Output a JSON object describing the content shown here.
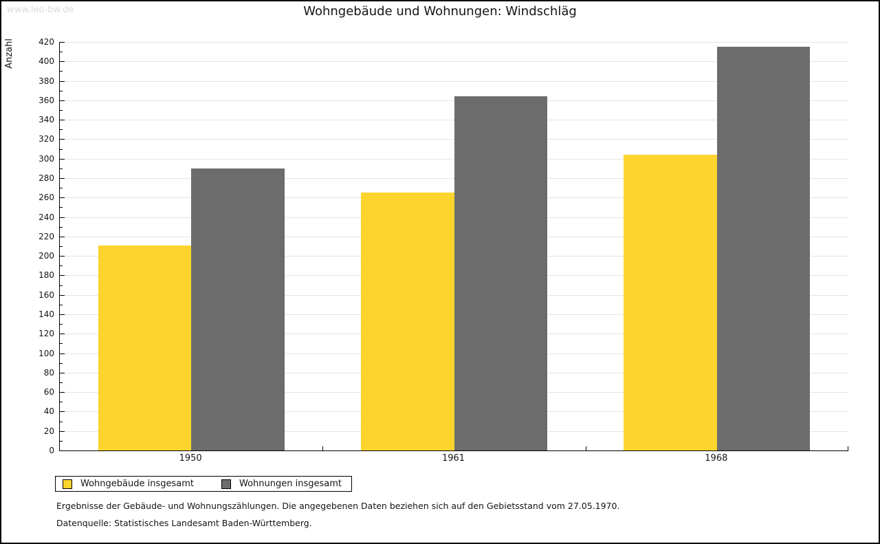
{
  "watermark": "www.leo-bw.de",
  "title": "Wohngebäude und Wohnungen: Windschläg",
  "chart_data": {
    "type": "bar",
    "title": "Wohngebäude und Wohnungen: Windschläg",
    "categories": [
      "1950",
      "1961",
      "1968"
    ],
    "series": [
      {
        "name": "Wohngebäude insgesamt",
        "color": "#fcd42d",
        "values": [
          211,
          265,
          304
        ]
      },
      {
        "name": "Wohnungen insgesamt",
        "color": "#6c6c6c",
        "values": [
          290,
          364,
          415
        ]
      }
    ],
    "xlabel": "",
    "ylabel": "Anzahl",
    "ylim": [
      0,
      420
    ],
    "ytick_major": 20,
    "ytick_minor": 10,
    "grid": "horizontal-major",
    "gridline_color": "#e4e4e4",
    "legend_position": "bottom-left"
  },
  "footnotes": [
    "Ergebnisse der Gebäude- und Wohnungszählungen. Die angegebenen Daten beziehen sich auf den Gebietsstand vom 27.05.1970.",
    "Datenquelle: Statistisches Landesamt Baden-Württemberg."
  ]
}
